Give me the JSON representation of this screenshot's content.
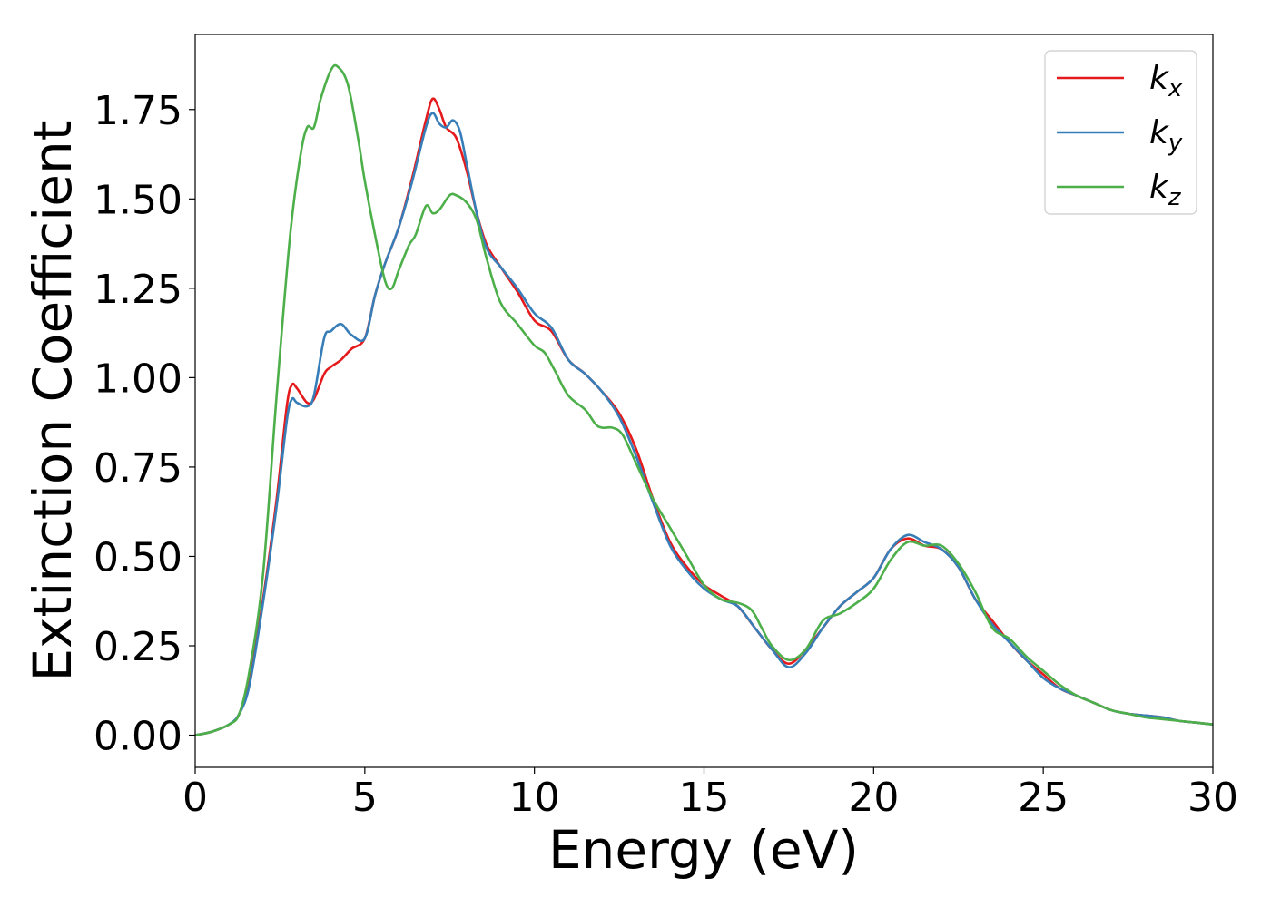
{
  "chart_data": {
    "type": "line",
    "title": "",
    "xlabel": "Energy (eV)",
    "ylabel": "Extinction Coefficient",
    "xlim": [
      0,
      30
    ],
    "ylim": [
      -0.09,
      1.96
    ],
    "xticks": [
      "0",
      "5",
      "10",
      "15",
      "20",
      "25",
      "30"
    ],
    "yticks": [
      "0.00",
      "0.25",
      "0.50",
      "0.75",
      "1.00",
      "1.25",
      "1.50",
      "1.75"
    ],
    "grid": false,
    "legend_position": "top-right",
    "series": [
      {
        "name": "k_x",
        "label_base": "k",
        "label_sub": "x",
        "color": "#e41a1c",
        "points": [
          [
            0,
            0
          ],
          [
            0.5,
            0.01
          ],
          [
            1.0,
            0.03
          ],
          [
            1.3,
            0.06
          ],
          [
            1.6,
            0.15
          ],
          [
            2.0,
            0.38
          ],
          [
            2.4,
            0.66
          ],
          [
            2.7,
            0.92
          ],
          [
            2.85,
            0.98
          ],
          [
            3.0,
            0.97
          ],
          [
            3.3,
            0.93
          ],
          [
            3.5,
            0.94
          ],
          [
            3.8,
            1.01
          ],
          [
            4.0,
            1.03
          ],
          [
            4.3,
            1.05
          ],
          [
            4.6,
            1.08
          ],
          [
            5.0,
            1.11
          ],
          [
            5.3,
            1.23
          ],
          [
            5.6,
            1.32
          ],
          [
            6.0,
            1.42
          ],
          [
            6.4,
            1.56
          ],
          [
            6.8,
            1.72
          ],
          [
            7.0,
            1.78
          ],
          [
            7.2,
            1.75
          ],
          [
            7.4,
            1.7
          ],
          [
            7.7,
            1.67
          ],
          [
            8.0,
            1.58
          ],
          [
            8.3,
            1.46
          ],
          [
            8.6,
            1.37
          ],
          [
            9.0,
            1.31
          ],
          [
            9.5,
            1.24
          ],
          [
            10.0,
            1.16
          ],
          [
            10.5,
            1.13
          ],
          [
            11.0,
            1.05
          ],
          [
            11.5,
            1.01
          ],
          [
            12.0,
            0.96
          ],
          [
            12.5,
            0.9
          ],
          [
            13.0,
            0.8
          ],
          [
            13.5,
            0.66
          ],
          [
            14.0,
            0.54
          ],
          [
            14.5,
            0.47
          ],
          [
            15.0,
            0.42
          ],
          [
            15.5,
            0.39
          ],
          [
            16.0,
            0.36
          ],
          [
            16.5,
            0.3
          ],
          [
            17.0,
            0.24
          ],
          [
            17.5,
            0.2
          ],
          [
            18.0,
            0.24
          ],
          [
            18.5,
            0.3
          ],
          [
            19.0,
            0.36
          ],
          [
            19.5,
            0.4
          ],
          [
            20.0,
            0.44
          ],
          [
            20.5,
            0.52
          ],
          [
            21.0,
            0.55
          ],
          [
            21.5,
            0.53
          ],
          [
            22.0,
            0.52
          ],
          [
            22.5,
            0.47
          ],
          [
            23.0,
            0.38
          ],
          [
            23.5,
            0.32
          ],
          [
            24.0,
            0.26
          ],
          [
            24.5,
            0.21
          ],
          [
            25.0,
            0.17
          ],
          [
            25.5,
            0.13
          ],
          [
            26.0,
            0.11
          ],
          [
            26.5,
            0.09
          ],
          [
            27.0,
            0.07
          ],
          [
            27.5,
            0.06
          ],
          [
            28.0,
            0.055
          ],
          [
            28.5,
            0.05
          ],
          [
            29.0,
            0.04
          ],
          [
            29.5,
            0.035
          ],
          [
            30.0,
            0.03
          ]
        ]
      },
      {
        "name": "k_y",
        "label_base": "k",
        "label_sub": "y",
        "color": "#377eb8",
        "points": [
          [
            0,
            0
          ],
          [
            0.5,
            0.01
          ],
          [
            1.0,
            0.03
          ],
          [
            1.3,
            0.06
          ],
          [
            1.6,
            0.14
          ],
          [
            2.0,
            0.37
          ],
          [
            2.4,
            0.64
          ],
          [
            2.7,
            0.88
          ],
          [
            2.85,
            0.94
          ],
          [
            3.0,
            0.93
          ],
          [
            3.3,
            0.92
          ],
          [
            3.5,
            0.95
          ],
          [
            3.8,
            1.11
          ],
          [
            4.0,
            1.13
          ],
          [
            4.3,
            1.15
          ],
          [
            4.6,
            1.12
          ],
          [
            5.0,
            1.11
          ],
          [
            5.3,
            1.23
          ],
          [
            5.6,
            1.32
          ],
          [
            6.0,
            1.42
          ],
          [
            6.4,
            1.55
          ],
          [
            6.8,
            1.7
          ],
          [
            7.0,
            1.74
          ],
          [
            7.2,
            1.71
          ],
          [
            7.4,
            1.7
          ],
          [
            7.6,
            1.72
          ],
          [
            7.8,
            1.69
          ],
          [
            8.0,
            1.6
          ],
          [
            8.3,
            1.46
          ],
          [
            8.6,
            1.36
          ],
          [
            9.0,
            1.31
          ],
          [
            9.5,
            1.25
          ],
          [
            10.0,
            1.18
          ],
          [
            10.5,
            1.14
          ],
          [
            11.0,
            1.05
          ],
          [
            11.5,
            1.01
          ],
          [
            12.0,
            0.96
          ],
          [
            12.5,
            0.89
          ],
          [
            13.0,
            0.78
          ],
          [
            13.5,
            0.65
          ],
          [
            14.0,
            0.53
          ],
          [
            14.5,
            0.46
          ],
          [
            15.0,
            0.41
          ],
          [
            15.5,
            0.38
          ],
          [
            16.0,
            0.36
          ],
          [
            16.5,
            0.3
          ],
          [
            17.0,
            0.24
          ],
          [
            17.5,
            0.19
          ],
          [
            18.0,
            0.23
          ],
          [
            18.5,
            0.3
          ],
          [
            19.0,
            0.36
          ],
          [
            19.5,
            0.4
          ],
          [
            20.0,
            0.44
          ],
          [
            20.5,
            0.52
          ],
          [
            21.0,
            0.56
          ],
          [
            21.5,
            0.54
          ],
          [
            22.0,
            0.52
          ],
          [
            22.5,
            0.47
          ],
          [
            23.0,
            0.38
          ],
          [
            23.5,
            0.31
          ],
          [
            24.0,
            0.26
          ],
          [
            24.5,
            0.21
          ],
          [
            25.0,
            0.16
          ],
          [
            25.5,
            0.13
          ],
          [
            26.0,
            0.11
          ],
          [
            26.5,
            0.09
          ],
          [
            27.0,
            0.07
          ],
          [
            27.5,
            0.06
          ],
          [
            28.0,
            0.055
          ],
          [
            28.5,
            0.05
          ],
          [
            29.0,
            0.04
          ],
          [
            29.5,
            0.035
          ],
          [
            30.0,
            0.03
          ]
        ]
      },
      {
        "name": "k_z",
        "label_base": "k",
        "label_sub": "z",
        "color": "#4daf4a",
        "points": [
          [
            0,
            0
          ],
          [
            0.5,
            0.01
          ],
          [
            1.0,
            0.03
          ],
          [
            1.3,
            0.06
          ],
          [
            1.6,
            0.18
          ],
          [
            2.0,
            0.45
          ],
          [
            2.4,
            0.95
          ],
          [
            2.8,
            1.4
          ],
          [
            3.1,
            1.62
          ],
          [
            3.3,
            1.7
          ],
          [
            3.5,
            1.7
          ],
          [
            3.7,
            1.78
          ],
          [
            4.0,
            1.86
          ],
          [
            4.2,
            1.87
          ],
          [
            4.5,
            1.82
          ],
          [
            4.8,
            1.67
          ],
          [
            5.0,
            1.55
          ],
          [
            5.3,
            1.4
          ],
          [
            5.6,
            1.27
          ],
          [
            5.8,
            1.25
          ],
          [
            6.0,
            1.3
          ],
          [
            6.3,
            1.37
          ],
          [
            6.5,
            1.4
          ],
          [
            6.8,
            1.48
          ],
          [
            7.0,
            1.46
          ],
          [
            7.2,
            1.47
          ],
          [
            7.5,
            1.51
          ],
          [
            7.7,
            1.51
          ],
          [
            8.0,
            1.49
          ],
          [
            8.3,
            1.44
          ],
          [
            8.6,
            1.33
          ],
          [
            9.0,
            1.21
          ],
          [
            9.5,
            1.15
          ],
          [
            10.0,
            1.09
          ],
          [
            10.3,
            1.07
          ],
          [
            10.6,
            1.02
          ],
          [
            11.0,
            0.95
          ],
          [
            11.5,
            0.91
          ],
          [
            11.8,
            0.87
          ],
          [
            12.0,
            0.86
          ],
          [
            12.3,
            0.86
          ],
          [
            12.6,
            0.84
          ],
          [
            13.0,
            0.76
          ],
          [
            13.5,
            0.66
          ],
          [
            14.0,
            0.58
          ],
          [
            14.5,
            0.5
          ],
          [
            15.0,
            0.42
          ],
          [
            15.5,
            0.38
          ],
          [
            16.0,
            0.37
          ],
          [
            16.4,
            0.35
          ],
          [
            16.7,
            0.3
          ],
          [
            17.0,
            0.25
          ],
          [
            17.5,
            0.21
          ],
          [
            18.0,
            0.24
          ],
          [
            18.5,
            0.32
          ],
          [
            19.0,
            0.34
          ],
          [
            19.5,
            0.37
          ],
          [
            20.0,
            0.41
          ],
          [
            20.5,
            0.49
          ],
          [
            21.0,
            0.54
          ],
          [
            21.5,
            0.53
          ],
          [
            22.0,
            0.53
          ],
          [
            22.5,
            0.48
          ],
          [
            23.0,
            0.4
          ],
          [
            23.5,
            0.3
          ],
          [
            24.0,
            0.27
          ],
          [
            24.5,
            0.22
          ],
          [
            25.0,
            0.18
          ],
          [
            25.5,
            0.14
          ],
          [
            26.0,
            0.11
          ],
          [
            26.5,
            0.09
          ],
          [
            27.0,
            0.07
          ],
          [
            27.5,
            0.06
          ],
          [
            28.0,
            0.05
          ],
          [
            28.5,
            0.045
          ],
          [
            29.0,
            0.04
          ],
          [
            29.5,
            0.035
          ],
          [
            30.0,
            0.03
          ]
        ]
      }
    ]
  }
}
